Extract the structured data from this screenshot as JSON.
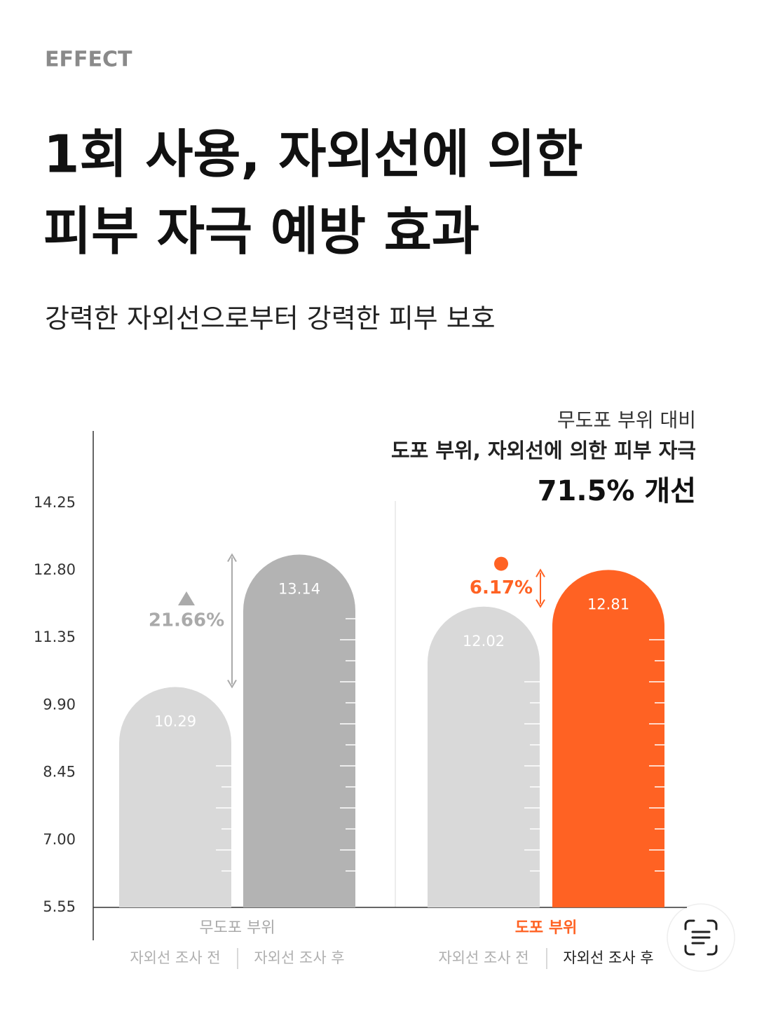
{
  "header": {
    "eyebrow": "EFFECT",
    "title_lines": [
      "1회 사용, 자외선에 의한",
      "피부 자극 예방 효과"
    ],
    "subtitle": "강력한 자외선으로부터 강력한 피부 보호"
  },
  "chart_data": {
    "type": "bar",
    "callout": [
      "무도포 부위 대비",
      "도포 부위, 자외선에 의한 피부 자극",
      "71.5% 개선"
    ],
    "categories": [
      "무도포 부위",
      "도포 부위"
    ],
    "category_colors": [
      "#aaaaaa",
      "#ff6223"
    ],
    "series": [
      {
        "name": "자외선 조사 전",
        "colors": [
          "#d9d9d9",
          "#d9d9d9"
        ],
        "values": [
          10.29,
          12.02
        ]
      },
      {
        "name": "자외선 조사 후",
        "colors": [
          "#b3b3b3",
          "#ff6223"
        ],
        "values": [
          13.14,
          12.81
        ]
      }
    ],
    "annotations": [
      "21.66%",
      "6.17%"
    ],
    "annotation_colors": [
      "#aaaaaa",
      "#ff6223"
    ],
    "ylim": [
      5.55,
      15.8
    ],
    "yticks": [
      5.55,
      {
        "value": 7,
        "label": "7.00"
      },
      {
        "value": 8.45,
        "label": "8.45"
      },
      {
        "value": 9.9,
        "label": "9.90"
      },
      11.35,
      {
        "value": 12.8,
        "label": "12.80"
      },
      14.25
    ]
  }
}
